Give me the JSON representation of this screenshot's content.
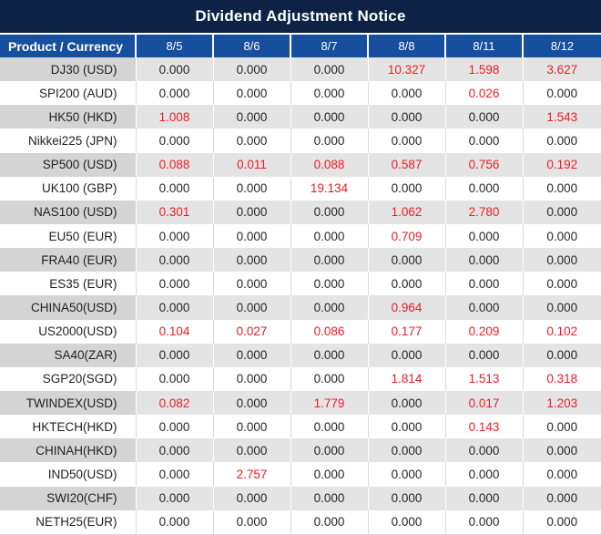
{
  "chart_data": {
    "type": "table",
    "title": "Dividend Adjustment Notice",
    "product_header": "Product / Currency",
    "date_headers": [
      "8/5",
      "8/6",
      "8/7",
      "8/8",
      "8/11",
      "8/12"
    ],
    "rows": [
      {
        "product": "DJ30 (USD)",
        "values": [
          "0.000",
          "0.000",
          "0.000",
          "10.327",
          "1.598",
          "3.627"
        ],
        "red": [
          false,
          false,
          false,
          true,
          true,
          true
        ]
      },
      {
        "product": "SPI200 (AUD)",
        "values": [
          "0.000",
          "0.000",
          "0.000",
          "0.000",
          "0.026",
          "0.000"
        ],
        "red": [
          false,
          false,
          false,
          false,
          true,
          false
        ]
      },
      {
        "product": "HK50 (HKD)",
        "values": [
          "1.008",
          "0.000",
          "0.000",
          "0.000",
          "0.000",
          "1.543"
        ],
        "red": [
          true,
          false,
          false,
          false,
          false,
          true
        ]
      },
      {
        "product": "Nikkei225 (JPN)",
        "values": [
          "0.000",
          "0.000",
          "0.000",
          "0.000",
          "0.000",
          "0.000"
        ],
        "red": [
          false,
          false,
          false,
          false,
          false,
          false
        ]
      },
      {
        "product": "SP500 (USD)",
        "values": [
          "0.088",
          "0.011",
          "0.088",
          "0.587",
          "0.756",
          "0.192"
        ],
        "red": [
          true,
          true,
          true,
          true,
          true,
          true
        ]
      },
      {
        "product": "UK100 (GBP)",
        "values": [
          "0.000",
          "0.000",
          "19.134",
          "0.000",
          "0.000",
          "0.000"
        ],
        "red": [
          false,
          false,
          true,
          false,
          false,
          false
        ]
      },
      {
        "product": "NAS100 (USD)",
        "values": [
          "0.301",
          "0.000",
          "0.000",
          "1.062",
          "2.780",
          "0.000"
        ],
        "red": [
          true,
          false,
          false,
          true,
          true,
          false
        ]
      },
      {
        "product": "EU50 (EUR)",
        "values": [
          "0.000",
          "0.000",
          "0.000",
          "0.709",
          "0.000",
          "0.000"
        ],
        "red": [
          false,
          false,
          false,
          true,
          false,
          false
        ]
      },
      {
        "product": "FRA40 (EUR)",
        "values": [
          "0.000",
          "0.000",
          "0.000",
          "0.000",
          "0.000",
          "0.000"
        ],
        "red": [
          false,
          false,
          false,
          false,
          false,
          false
        ]
      },
      {
        "product": "ES35 (EUR)",
        "values": [
          "0.000",
          "0.000",
          "0.000",
          "0.000",
          "0.000",
          "0.000"
        ],
        "red": [
          false,
          false,
          false,
          false,
          false,
          false
        ]
      },
      {
        "product": "CHINA50(USD)",
        "values": [
          "0.000",
          "0.000",
          "0.000",
          "0.964",
          "0.000",
          "0.000"
        ],
        "red": [
          false,
          false,
          false,
          true,
          false,
          false
        ]
      },
      {
        "product": "US2000(USD)",
        "values": [
          "0.104",
          "0.027",
          "0.086",
          "0.177",
          "0.209",
          "0.102"
        ],
        "red": [
          true,
          true,
          true,
          true,
          true,
          true
        ]
      },
      {
        "product": "SA40(ZAR)",
        "values": [
          "0.000",
          "0.000",
          "0.000",
          "0.000",
          "0.000",
          "0.000"
        ],
        "red": [
          false,
          false,
          false,
          false,
          false,
          false
        ]
      },
      {
        "product": "SGP20(SGD)",
        "values": [
          "0.000",
          "0.000",
          "0.000",
          "1.814",
          "1.513",
          "0.318"
        ],
        "red": [
          false,
          false,
          false,
          true,
          true,
          true
        ]
      },
      {
        "product": "TWINDEX(USD)",
        "values": [
          "0.082",
          "0.000",
          "1.779",
          "0.000",
          "0.017",
          "1.203"
        ],
        "red": [
          true,
          false,
          true,
          false,
          true,
          true
        ]
      },
      {
        "product": "HKTECH(HKD)",
        "values": [
          "0.000",
          "0.000",
          "0.000",
          "0.000",
          "0.143",
          "0.000"
        ],
        "red": [
          false,
          false,
          false,
          false,
          true,
          false
        ]
      },
      {
        "product": "CHINAH(HKD)",
        "values": [
          "0.000",
          "0.000",
          "0.000",
          "0.000",
          "0.000",
          "0.000"
        ],
        "red": [
          false,
          false,
          false,
          false,
          false,
          false
        ]
      },
      {
        "product": "IND50(USD)",
        "values": [
          "0.000",
          "2.757",
          "0.000",
          "0.000",
          "0.000",
          "0.000"
        ],
        "red": [
          false,
          true,
          false,
          false,
          false,
          false
        ]
      },
      {
        "product": "SWI20(CHF)",
        "values": [
          "0.000",
          "0.000",
          "0.000",
          "0.000",
          "0.000",
          "0.000"
        ],
        "red": [
          false,
          false,
          false,
          false,
          false,
          false
        ]
      },
      {
        "product": "NETH25(EUR)",
        "values": [
          "0.000",
          "0.000",
          "0.000",
          "0.000",
          "0.000",
          "0.000"
        ],
        "red": [
          false,
          false,
          false,
          false,
          false,
          false
        ]
      }
    ]
  },
  "colors": {
    "title_bg": "#0d2244",
    "header_bg": "#174f9e",
    "header_text": "#ffffff",
    "stripe_product_bg": "#d4d4d4",
    "stripe_data_bg": "#e4e4e4",
    "row_bg": "#ffffff",
    "value_text": "#262626",
    "highlight_value_text": "#ed1c24"
  }
}
